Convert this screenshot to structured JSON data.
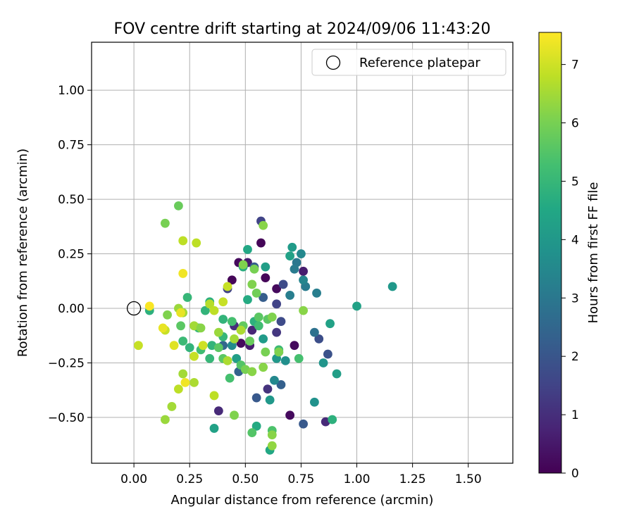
{
  "chart_data": {
    "type": "scatter",
    "title": "FOV centre drift starting at 2024/09/06 11:43:20",
    "xlabel": "Angular distance from reference (arcmin)",
    "ylabel": "Rotation from reference (arcmin)",
    "xlim": [
      -0.19,
      1.7
    ],
    "ylim": [
      -0.71,
      1.22
    ],
    "xticks": [
      0.0,
      0.25,
      0.5,
      0.75,
      1.0,
      1.25,
      1.5
    ],
    "xtick_labels": [
      "0.00",
      "0.25",
      "0.50",
      "0.75",
      "1.00",
      "1.25",
      "1.50"
    ],
    "yticks": [
      -0.5,
      -0.25,
      0.0,
      0.25,
      0.5,
      0.75,
      1.0
    ],
    "ytick_labels": [
      "−0.50",
      "−0.25",
      "0.00",
      "0.25",
      "0.50",
      "0.75",
      "1.00"
    ],
    "grid": true,
    "legend": {
      "position": "top-right",
      "label": "Reference platepar",
      "marker": "open-circle"
    },
    "reference_point": {
      "x": 0.0,
      "y": 0.0
    },
    "colorbar": {
      "label": "Hours from first FF file",
      "colormap": "viridis",
      "range": [
        0,
        7.55
      ],
      "ticks": [
        0,
        1,
        2,
        3,
        4,
        5,
        6,
        7
      ],
      "tick_labels": [
        "0",
        "1",
        "2",
        "3",
        "4",
        "5",
        "6",
        "7"
      ]
    },
    "points": [
      {
        "x": 0.57,
        "y": 0.3,
        "h": 0.1
      },
      {
        "x": 0.47,
        "y": 0.21,
        "h": 0.2
      },
      {
        "x": 0.59,
        "y": 0.14,
        "h": 0.1
      },
      {
        "x": 0.44,
        "y": 0.13,
        "h": 0.1
      },
      {
        "x": 0.64,
        "y": 0.09,
        "h": 0.2
      },
      {
        "x": 0.7,
        "y": -0.49,
        "h": 0.2
      },
      {
        "x": 0.72,
        "y": -0.17,
        "h": 0.2
      },
      {
        "x": 0.48,
        "y": -0.16,
        "h": 0.2
      },
      {
        "x": 0.76,
        "y": 0.17,
        "h": 0.6
      },
      {
        "x": 0.51,
        "y": 0.21,
        "h": 0.6
      },
      {
        "x": 0.52,
        "y": -0.17,
        "h": 0.6
      },
      {
        "x": 0.53,
        "y": -0.1,
        "h": 0.8
      },
      {
        "x": 0.38,
        "y": -0.47,
        "h": 0.9
      },
      {
        "x": 0.86,
        "y": -0.52,
        "h": 0.9
      },
      {
        "x": 0.45,
        "y": -0.08,
        "h": 1.0
      },
      {
        "x": 0.6,
        "y": -0.37,
        "h": 1.1
      },
      {
        "x": 0.64,
        "y": -0.11,
        "h": 1.2
      },
      {
        "x": 0.57,
        "y": 0.4,
        "h": 1.5
      },
      {
        "x": 0.64,
        "y": 0.02,
        "h": 1.5
      },
      {
        "x": 0.67,
        "y": 0.11,
        "h": 1.7
      },
      {
        "x": 0.42,
        "y": 0.09,
        "h": 1.5
      },
      {
        "x": 0.66,
        "y": -0.06,
        "h": 1.7
      },
      {
        "x": 0.65,
        "y": -0.2,
        "h": 1.6
      },
      {
        "x": 0.83,
        "y": -0.14,
        "h": 1.8
      },
      {
        "x": 0.87,
        "y": -0.21,
        "h": 1.9
      },
      {
        "x": 0.76,
        "y": -0.53,
        "h": 2.1
      },
      {
        "x": 0.55,
        "y": -0.41,
        "h": 2.1
      },
      {
        "x": 0.66,
        "y": -0.35,
        "h": 2.3
      },
      {
        "x": 0.58,
        "y": 0.05,
        "h": 2.2
      },
      {
        "x": 0.54,
        "y": 0.19,
        "h": 2.2
      },
      {
        "x": 0.4,
        "y": -0.17,
        "h": 2.5
      },
      {
        "x": 0.47,
        "y": -0.29,
        "h": 2.4
      },
      {
        "x": 0.81,
        "y": -0.11,
        "h": 2.8
      },
      {
        "x": 0.73,
        "y": 0.21,
        "h": 3.0
      },
      {
        "x": 0.72,
        "y": 0.18,
        "h": 3.1
      },
      {
        "x": 0.77,
        "y": 0.1,
        "h": 3.1
      },
      {
        "x": 0.82,
        "y": 0.07,
        "h": 3.2
      },
      {
        "x": 0.7,
        "y": 0.06,
        "h": 3.2
      },
      {
        "x": 0.76,
        "y": 0.13,
        "h": 3.4
      },
      {
        "x": 0.75,
        "y": 0.25,
        "h": 3.5
      },
      {
        "x": 0.63,
        "y": -0.33,
        "h": 3.5
      },
      {
        "x": 0.44,
        "y": -0.17,
        "h": 3.6
      },
      {
        "x": 0.68,
        "y": -0.24,
        "h": 3.7
      },
      {
        "x": 0.81,
        "y": -0.43,
        "h": 3.8
      },
      {
        "x": 0.85,
        "y": -0.25,
        "h": 3.9
      },
      {
        "x": 0.61,
        "y": -0.42,
        "h": 4.0
      },
      {
        "x": 0.64,
        "y": -0.23,
        "h": 4.0
      },
      {
        "x": 0.91,
        "y": -0.3,
        "h": 4.2
      },
      {
        "x": 1.16,
        "y": 0.1,
        "h": 4.0
      },
      {
        "x": 1.0,
        "y": 0.01,
        "h": 4.3
      },
      {
        "x": 0.88,
        "y": -0.07,
        "h": 4.3
      },
      {
        "x": 0.71,
        "y": 0.28,
        "h": 4.1
      },
      {
        "x": 0.7,
        "y": 0.24,
        "h": 4.3
      },
      {
        "x": 0.59,
        "y": 0.19,
        "h": 4.2
      },
      {
        "x": 0.58,
        "y": -0.14,
        "h": 4.1
      },
      {
        "x": 0.46,
        "y": -0.23,
        "h": 4.2
      },
      {
        "x": 0.36,
        "y": -0.55,
        "h": 4.3
      },
      {
        "x": 0.61,
        "y": -0.65,
        "h": 4.5
      },
      {
        "x": 0.55,
        "y": -0.54,
        "h": 4.6
      },
      {
        "x": 0.89,
        "y": -0.51,
        "h": 4.8
      },
      {
        "x": 0.51,
        "y": 0.27,
        "h": 4.5
      },
      {
        "x": 0.49,
        "y": 0.19,
        "h": 4.7
      },
      {
        "x": 0.51,
        "y": 0.04,
        "h": 4.6
      },
      {
        "x": 0.54,
        "y": -0.06,
        "h": 4.8
      },
      {
        "x": 0.4,
        "y": -0.05,
        "h": 4.9
      },
      {
        "x": 0.34,
        "y": 0.03,
        "h": 4.8
      },
      {
        "x": 0.32,
        "y": -0.01,
        "h": 4.9
      },
      {
        "x": 0.29,
        "y": -0.09,
        "h": 5.0
      },
      {
        "x": 0.35,
        "y": -0.17,
        "h": 4.9
      },
      {
        "x": 0.34,
        "y": -0.23,
        "h": 5.0
      },
      {
        "x": 0.4,
        "y": -0.13,
        "h": 5.0
      },
      {
        "x": 0.25,
        "y": -0.18,
        "h": 4.9
      },
      {
        "x": 0.24,
        "y": 0.05,
        "h": 5.0
      },
      {
        "x": 0.07,
        "y": -0.01,
        "h": 4.8
      },
      {
        "x": 0.22,
        "y": -0.15,
        "h": 5.1
      },
      {
        "x": 0.3,
        "y": -0.19,
        "h": 5.2
      },
      {
        "x": 0.65,
        "y": -0.19,
        "h": 5.1
      },
      {
        "x": 0.56,
        "y": -0.08,
        "h": 5.2
      },
      {
        "x": 0.74,
        "y": -0.23,
        "h": 5.3
      },
      {
        "x": 0.43,
        "y": -0.32,
        "h": 5.3
      },
      {
        "x": 0.62,
        "y": -0.56,
        "h": 5.4
      },
      {
        "x": 0.53,
        "y": -0.57,
        "h": 5.5
      },
      {
        "x": 0.44,
        "y": -0.06,
        "h": 5.3
      },
      {
        "x": 0.4,
        "y": -0.23,
        "h": 5.6
      },
      {
        "x": 0.48,
        "y": -0.26,
        "h": 5.5
      },
      {
        "x": 0.56,
        "y": -0.04,
        "h": 5.6
      },
      {
        "x": 0.6,
        "y": -0.05,
        "h": 5.6
      },
      {
        "x": 0.49,
        "y": -0.08,
        "h": 5.7
      },
      {
        "x": 0.52,
        "y": -0.15,
        "h": 5.8
      },
      {
        "x": 0.38,
        "y": -0.18,
        "h": 5.6
      },
      {
        "x": 0.21,
        "y": -0.08,
        "h": 5.6
      },
      {
        "x": 0.2,
        "y": 0.47,
        "h": 5.8
      },
      {
        "x": 0.14,
        "y": 0.39,
        "h": 6.0
      },
      {
        "x": 0.58,
        "y": 0.38,
        "h": 6.2
      },
      {
        "x": 0.49,
        "y": 0.2,
        "h": 6.1
      },
      {
        "x": 0.54,
        "y": 0.18,
        "h": 6.0
      },
      {
        "x": 0.53,
        "y": 0.11,
        "h": 6.1
      },
      {
        "x": 0.55,
        "y": 0.07,
        "h": 5.9
      },
      {
        "x": 0.76,
        "y": -0.01,
        "h": 6.2
      },
      {
        "x": 0.62,
        "y": -0.04,
        "h": 6.1
      },
      {
        "x": 0.59,
        "y": -0.2,
        "h": 6.0
      },
      {
        "x": 0.58,
        "y": -0.27,
        "h": 6.2
      },
      {
        "x": 0.5,
        "y": -0.28,
        "h": 6.0
      },
      {
        "x": 0.53,
        "y": -0.29,
        "h": 6.2
      },
      {
        "x": 0.65,
        "y": -0.2,
        "h": 6.1
      },
      {
        "x": 0.45,
        "y": -0.49,
        "h": 6.1
      },
      {
        "x": 0.62,
        "y": -0.58,
        "h": 6.2
      },
      {
        "x": 0.62,
        "y": -0.63,
        "h": 6.3
      },
      {
        "x": 0.17,
        "y": -0.45,
        "h": 6.5
      },
      {
        "x": 0.14,
        "y": -0.51,
        "h": 6.4
      },
      {
        "x": 0.2,
        "y": -0.37,
        "h": 6.8
      },
      {
        "x": 0.22,
        "y": -0.3,
        "h": 6.5
      },
      {
        "x": 0.27,
        "y": -0.34,
        "h": 6.6
      },
      {
        "x": 0.36,
        "y": -0.4,
        "h": 6.8
      },
      {
        "x": 0.15,
        "y": -0.03,
        "h": 6.1
      },
      {
        "x": 0.2,
        "y": 0.0,
        "h": 6.4
      },
      {
        "x": 0.22,
        "y": -0.02,
        "h": 6.5
      },
      {
        "x": 0.27,
        "y": -0.08,
        "h": 6.5
      },
      {
        "x": 0.3,
        "y": -0.09,
        "h": 6.2
      },
      {
        "x": 0.38,
        "y": -0.11,
        "h": 6.4
      },
      {
        "x": 0.42,
        "y": -0.24,
        "h": 6.6
      },
      {
        "x": 0.45,
        "y": -0.14,
        "h": 6.5
      },
      {
        "x": 0.48,
        "y": -0.1,
        "h": 6.6
      },
      {
        "x": 0.34,
        "y": 0.02,
        "h": 6.7
      },
      {
        "x": 0.36,
        "y": -0.01,
        "h": 6.8
      },
      {
        "x": 0.4,
        "y": 0.03,
        "h": 6.9
      },
      {
        "x": 0.42,
        "y": 0.1,
        "h": 6.9
      },
      {
        "x": 0.22,
        "y": 0.31,
        "h": 6.8
      },
      {
        "x": 0.28,
        "y": 0.3,
        "h": 6.8
      },
      {
        "x": 0.27,
        "y": -0.22,
        "h": 6.9
      },
      {
        "x": 0.31,
        "y": -0.17,
        "h": 7.0
      },
      {
        "x": 0.14,
        "y": -0.1,
        "h": 6.9
      },
      {
        "x": 0.02,
        "y": -0.17,
        "h": 6.9
      },
      {
        "x": 0.18,
        "y": -0.17,
        "h": 7.2
      },
      {
        "x": 0.23,
        "y": -0.34,
        "h": 7.4
      },
      {
        "x": 0.13,
        "y": -0.09,
        "h": 7.3
      },
      {
        "x": 0.21,
        "y": -0.02,
        "h": 7.3
      },
      {
        "x": 0.07,
        "y": 0.01,
        "h": 7.5
      },
      {
        "x": 0.22,
        "y": 0.16,
        "h": 7.4
      }
    ]
  }
}
